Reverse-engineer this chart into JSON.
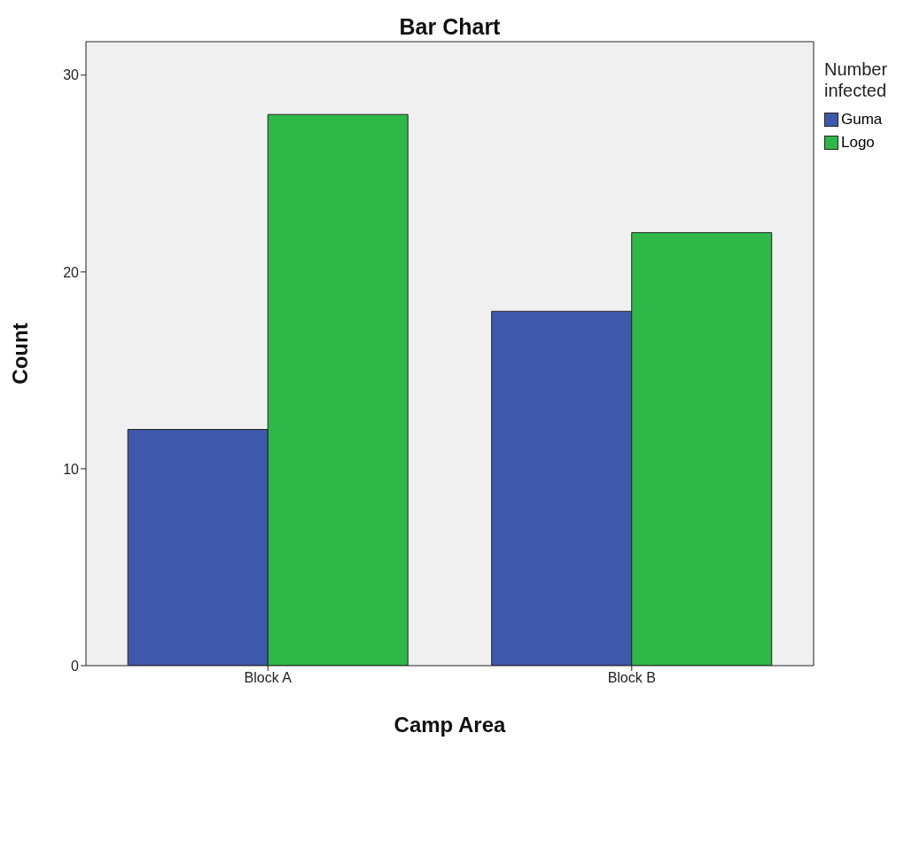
{
  "chart_data": {
    "type": "bar",
    "title": "Bar Chart",
    "xlabel": "Camp Area",
    "ylabel": "Count",
    "legend_title": "Number infected",
    "categories": [
      "Block A",
      "Block B"
    ],
    "series": [
      {
        "name": "Guma",
        "color": "#3e58ac",
        "values": [
          12,
          18
        ]
      },
      {
        "name": "Logo",
        "color": "#2eb848",
        "values": [
          28,
          22
        ]
      }
    ],
    "ylim": [
      0,
      31.7
    ],
    "yticks": [
      0,
      10,
      20,
      30
    ],
    "grid": false,
    "legend": "top right"
  }
}
